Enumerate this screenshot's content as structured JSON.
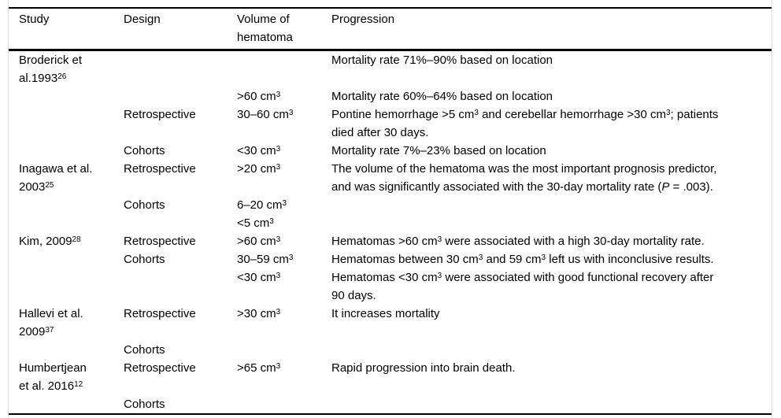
{
  "table": {
    "header": {
      "study": "Study",
      "design": "Design",
      "volume": "Volume of hematoma",
      "progression": "Progression"
    },
    "rows": [
      {
        "study": "Broderick et al.1993<sup>26</sup>",
        "design": "",
        "volume": "",
        "progression": "Mortality rate 71%–90% based on location"
      },
      {
        "study": "",
        "design": "",
        "volume": "&gt;60 cm<sup>3</sup>",
        "progression": "Mortality rate 60%–64% based on location"
      },
      {
        "study": "",
        "design": "Retrospective",
        "volume": "30–60 cm<sup>3</sup>",
        "progression": "Pontine hemorrhage &gt;5 cm<sup>3</sup> and cerebellar hemorrhage &gt;30 cm<sup>3</sup>; patients died after 30 days."
      },
      {
        "study": "",
        "design": "Cohorts",
        "volume": "&lt;30 cm<sup>3</sup>",
        "progression": "Mortality rate 7%–23% based on location"
      },
      {
        "study": "Inagawa et al. 2003<sup>25</sup>",
        "design": "Retrospective",
        "volume": "&gt;20 cm<sup>3</sup>",
        "progression": "The volume of the hematoma was the most important prognosis predictor, and was significantly associated with the 30-day mortality rate (<i>P</i> = .003)."
      },
      {
        "study": "",
        "design": "Cohorts",
        "volume": "6–20 cm<sup>3</sup>",
        "progression": ""
      },
      {
        "study": "",
        "design": "",
        "volume": "&lt;5 cm<sup>3</sup>",
        "progression": ""
      },
      {
        "study": "Kim, 2009<sup>28</sup>",
        "design": "Retrospective",
        "volume": "&gt;60 cm<sup>3</sup>",
        "progression": "Hematomas &gt;60 cm<sup>3</sup> were associated with a high 30-day mortality rate."
      },
      {
        "study": "",
        "design": "Cohorts",
        "volume": "30–59 cm<sup>3</sup>",
        "progression": "Hematomas between 30 cm<sup>3</sup> and 59 cm<sup>3</sup> left us with inconclusive results."
      },
      {
        "study": "",
        "design": "",
        "volume": "&lt;30 cm<sup>3</sup>",
        "progression": "Hematomas &lt;30 cm<sup>3</sup> were associated with good functional recovery after 90 days."
      },
      {
        "study": "Hallevi et al. 2009<sup>37</sup>",
        "design": "Retrospective",
        "volume": "&gt;30 cm<sup>3</sup>",
        "progression": "It increases mortality"
      },
      {
        "study": "",
        "design": "Cohorts",
        "volume": "",
        "progression": ""
      },
      {
        "study": "Humbertjean et al. 2016<sup>12</sup>",
        "design": "Retrospective",
        "volume": "&gt;65 cm<sup>3</sup>",
        "progression": "Rapid progression into brain death."
      },
      {
        "study": "",
        "design": "Cohorts",
        "volume": "",
        "progression": ""
      }
    ]
  }
}
